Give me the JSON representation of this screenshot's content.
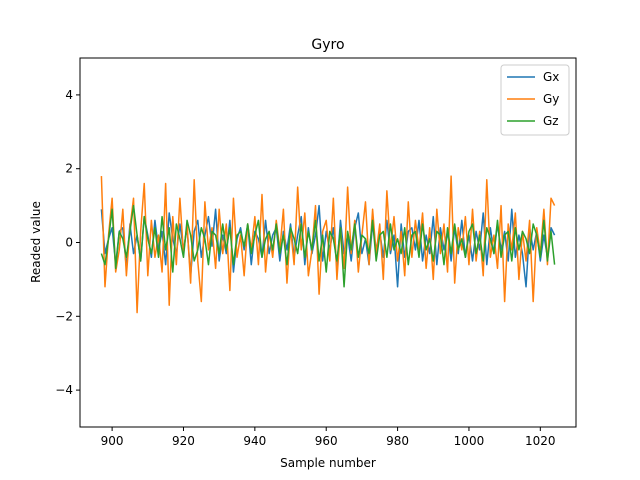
{
  "chart_data": {
    "type": "line",
    "title": "Gyro",
    "xlabel": "Sample number",
    "ylabel": "Readed value",
    "xlim": [
      891,
      1030
    ],
    "ylim": [
      -5,
      5
    ],
    "xticks": [
      900,
      920,
      940,
      960,
      980,
      1000,
      1020
    ],
    "yticks": [
      -4,
      -2,
      0,
      2,
      4
    ],
    "grid": false,
    "legend_position": "top-right",
    "x_start": 897,
    "x_end": 1024,
    "series": [
      {
        "name": "Gx",
        "color": "#1f77b4",
        "values": [
          0.9,
          -0.3,
          0.1,
          0.4,
          -0.6,
          0.3,
          0.4,
          -0.7,
          0.5,
          -0.3,
          0.2,
          -0.5,
          0.7,
          0.2,
          -0.4,
          0.6,
          -0.2,
          0.3,
          -0.6,
          0.8,
          0.1,
          -0.3,
          0.5,
          -0.2,
          0.4,
          -0.9,
          0.3,
          0.6,
          -0.4,
          0.2,
          0.7,
          -0.1,
          0.9,
          -0.5,
          0.2,
          -0.3,
          0.6,
          -0.8,
          0.1,
          0.4,
          -0.2,
          0.5,
          -0.6,
          0.3,
          0.1,
          -0.4,
          0.6,
          -0.3,
          0.2,
          0.4,
          -0.5,
          0.3,
          -0.2,
          0.5,
          -0.4,
          0.2,
          0.7,
          -0.6,
          0.4,
          -0.3,
          0.2,
          1.0,
          -0.5,
          0.3,
          -0.2,
          0.4,
          -0.7,
          0.6,
          -0.3,
          0.2,
          -0.5,
          0.4,
          0.8,
          -0.3,
          0.1,
          -0.6,
          0.5,
          -0.2,
          0.3,
          -0.4,
          0.6,
          -0.3,
          0.2,
          -1.2,
          0.5,
          -0.4,
          0.3,
          0.4,
          -0.2,
          0.6,
          -0.5,
          0.2,
          -0.3,
          0.7,
          -0.6,
          0.4,
          -0.2,
          0.3,
          -0.5,
          0.4,
          -0.3,
          0.6,
          -0.4,
          0.2,
          -0.5,
          0.3,
          -0.2,
          0.8,
          -0.6,
          0.4,
          -0.3,
          0.5,
          -0.2,
          0.3,
          -0.5,
          0.9,
          -0.4,
          0.2,
          -0.3,
          -1.2,
          0.4,
          -0.2,
          0.3,
          -0.5,
          0.2,
          -0.4,
          0.4,
          0.2
        ]
      },
      {
        "name": "Gy",
        "color": "#ff7f0e",
        "values": [
          1.8,
          -1.2,
          0.2,
          1.2,
          -0.8,
          -0.2,
          0.9,
          -0.9,
          0.4,
          1.2,
          -1.9,
          0.3,
          1.6,
          -0.9,
          0.6,
          -0.4,
          0.2,
          -0.8,
          1.6,
          -1.7,
          0.7,
          -0.6,
          1.2,
          -0.3,
          0.5,
          -1.1,
          1.7,
          -0.5,
          -1.6,
          1.1,
          -0.2,
          0.4,
          -0.7,
          0.9,
          -0.3,
          0.5,
          -1.3,
          1.2,
          -0.4,
          0.2,
          -0.9,
          0.5,
          -0.2,
          0.7,
          -0.6,
          1.3,
          -0.8,
          0.3,
          -0.4,
          0.6,
          -0.2,
          0.9,
          -1.1,
          0.4,
          -0.6,
          1.5,
          -0.2,
          0.8,
          -0.9,
          -0.2,
          1.0,
          -1.4,
          0.3,
          0.6,
          -0.5,
          1.2,
          -1.0,
          0.4,
          -0.7,
          1.5,
          -0.3,
          0.6,
          -0.8,
          0.2,
          1.1,
          -0.6,
          0.9,
          -0.3,
          0.5,
          -1.0,
          1.4,
          -0.2,
          0.7,
          -0.5,
          0.3,
          -0.9,
          1.1,
          -0.4,
          0.6,
          -0.2,
          0.8,
          -0.7,
          0.4,
          -1.0,
          0.9,
          -0.3,
          0.5,
          -0.8,
          1.8,
          -1.1,
          0.4,
          -0.2,
          0.7,
          -0.6,
          0.9,
          -0.5,
          0.3,
          -0.9,
          1.7,
          -0.4,
          0.2,
          -0.7,
          1.0,
          -1.6,
          0.5,
          -0.2,
          0.8,
          -1.0,
          0.3,
          -0.5,
          0.6,
          -1.6,
          0.4,
          -0.3,
          0.9,
          -0.6,
          1.2,
          1.0
        ]
      },
      {
        "name": "Gz",
        "color": "#2ca02c",
        "values": [
          -0.3,
          -0.6,
          0.1,
          0.9,
          -0.7,
          0.3,
          0.1,
          -0.4,
          0.3,
          1.0,
          0.2,
          -0.5,
          0.7,
          0.1,
          -0.3,
          0.4,
          -0.4,
          0.7,
          -0.2,
          0.4,
          -0.8,
          0.5,
          0.1,
          -0.4,
          0.6,
          0.2,
          -0.5,
          -0.2,
          0.4,
          0.1,
          -0.6,
          0.3,
          0.2,
          -0.3,
          0.5,
          -0.2,
          0.4,
          -0.6,
          0.2,
          0.3,
          -0.1,
          0.5,
          -0.3,
          0.2,
          0.6,
          -0.4,
          0.1,
          0.3,
          -0.2,
          0.5,
          -0.3,
          0.2,
          -0.6,
          0.4,
          0.1,
          -0.3,
          0.5,
          -0.4,
          0.3,
          -0.2,
          0.6,
          -0.5,
          0.2,
          -0.8,
          0.3,
          0.1,
          -0.5,
          0.4,
          -1.2,
          0.3,
          -0.2,
          0.5,
          -0.4,
          0.2,
          0.1,
          -0.3,
          0.6,
          -0.5,
          0.2,
          0.3,
          -0.4,
          0.5,
          -0.2,
          0.1,
          -0.3,
          0.4,
          -0.6,
          0.2,
          0.3,
          -0.4,
          0.5,
          -0.2,
          0.1,
          -0.5,
          0.3,
          0.2,
          -0.6,
          0.4,
          -0.3,
          0.5,
          -0.2,
          0.1,
          -0.4,
          0.3,
          0.5,
          -0.3,
          0.2,
          -0.5,
          0.4,
          0.1,
          -0.3,
          0.6,
          -0.4,
          0.2,
          0.3,
          -0.5,
          0.4,
          -0.2,
          0.3,
          0.1,
          -0.3,
          0.5,
          0.2,
          -0.4,
          0.6,
          -0.5,
          0.3,
          -0.6
        ]
      }
    ]
  }
}
